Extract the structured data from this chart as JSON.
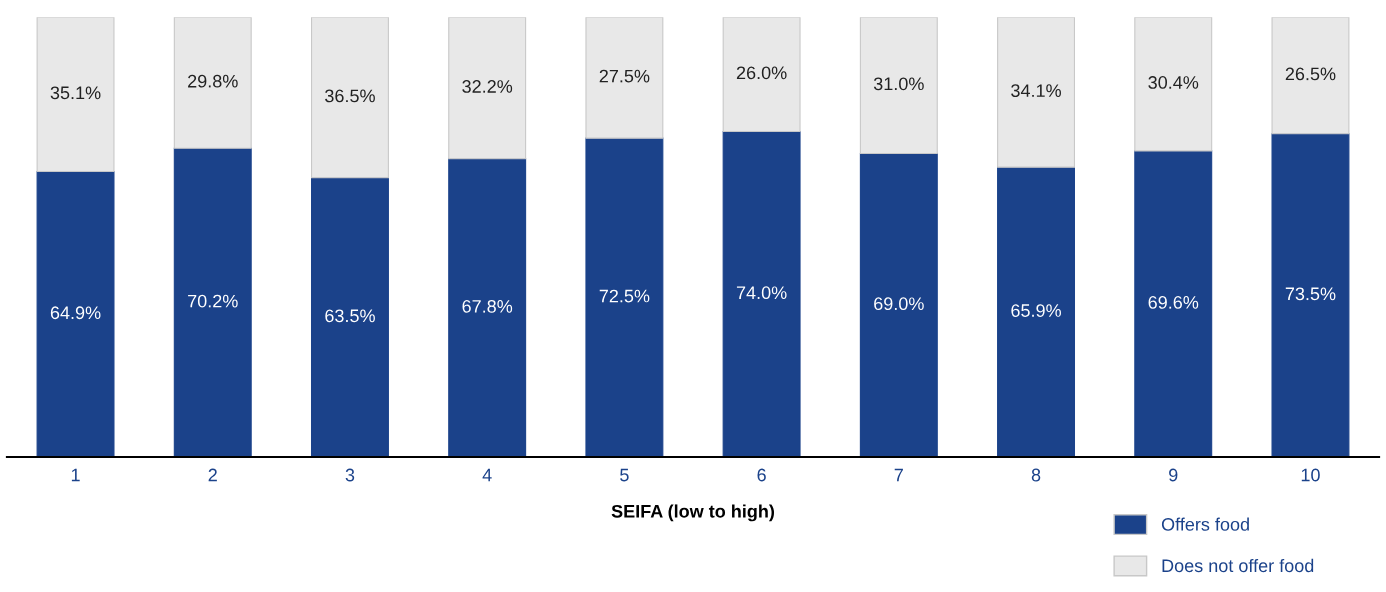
{
  "chart_data": {
    "type": "bar",
    "stacked": true,
    "xlabel": "SEIFA (low to high)",
    "categories": [
      "1",
      "2",
      "3",
      "4",
      "5",
      "6",
      "7",
      "8",
      "9",
      "10"
    ],
    "series": [
      {
        "name": "Offers food",
        "color": "#1b428a",
        "values": [
          64.9,
          70.2,
          63.5,
          67.8,
          72.5,
          74.0,
          69.0,
          65.9,
          69.6,
          73.5
        ],
        "value_labels": [
          "64.9%",
          "70.2%",
          "63.5%",
          "67.8%",
          "72.5%",
          "74.0%",
          "69.0%",
          "65.9%",
          "69.6%",
          "73.5%"
        ]
      },
      {
        "name": "Does not offer food",
        "color": "#e8e8e8",
        "values": [
          35.1,
          29.8,
          36.5,
          32.2,
          27.5,
          26.0,
          31.0,
          34.1,
          30.4,
          26.5
        ],
        "value_labels": [
          "35.1%",
          "29.8%",
          "36.5%",
          "32.2%",
          "27.5%",
          "26.0%",
          "31.0%",
          "34.1%",
          "30.4%",
          "26.5%"
        ]
      }
    ],
    "legend": "bottom right",
    "grid": false
  }
}
